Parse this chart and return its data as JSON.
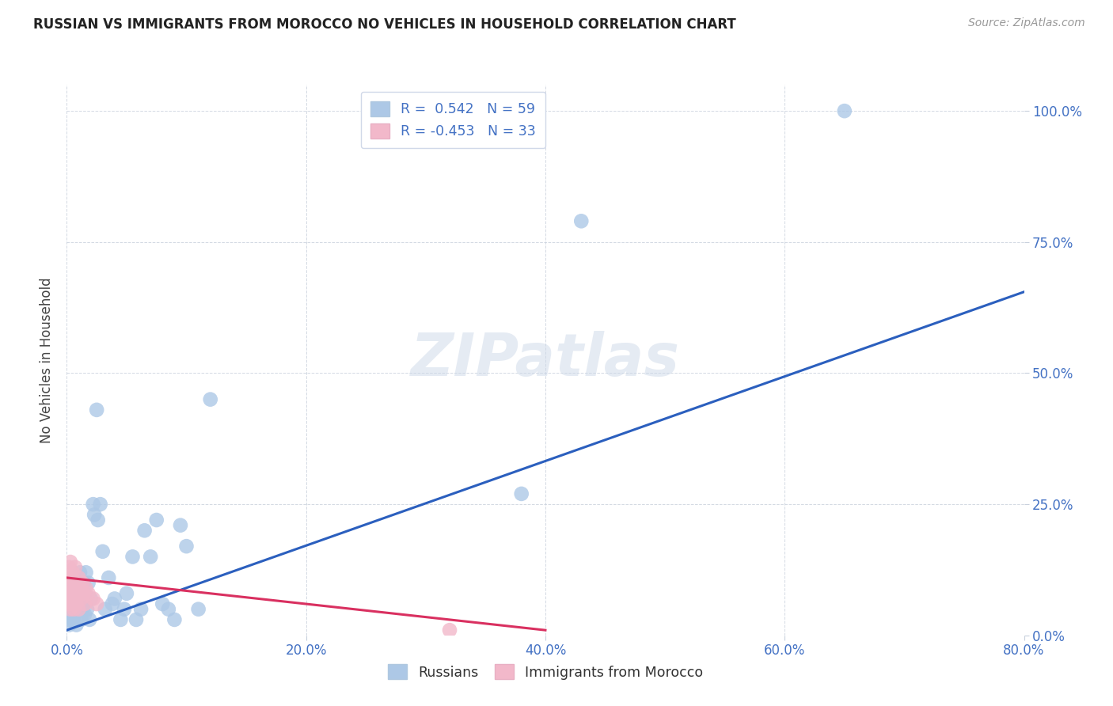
{
  "title": "RUSSIAN VS IMMIGRANTS FROM MOROCCO NO VEHICLES IN HOUSEHOLD CORRELATION CHART",
  "source": "Source: ZipAtlas.com",
  "xmin": 0.0,
  "xmax": 0.8,
  "ymin": 0.0,
  "ymax": 1.05,
  "x_ticks": [
    0.0,
    0.2,
    0.4,
    0.6,
    0.8
  ],
  "y_ticks": [
    0.0,
    0.25,
    0.5,
    0.75,
    1.0
  ],
  "x_tick_labels": [
    "0.0%",
    "20.0%",
    "40.0%",
    "60.0%",
    "80.0%"
  ],
  "y_tick_labels": [
    "0.0%",
    "25.0%",
    "50.0%",
    "75.0%",
    "100.0%"
  ],
  "legend_label1": "R =  0.542   N = 59",
  "legend_label2": "R = -0.453   N = 33",
  "legend_bottom_label1": "Russians",
  "legend_bottom_label2": "Immigrants from Morocco",
  "color_russian": "#adc8e6",
  "color_morocco": "#f2b8ca",
  "color_line_russian": "#2b5fbe",
  "color_line_morocco": "#d93060",
  "watermark": "ZIPatlas",
  "russians_x": [
    0.001,
    0.002,
    0.002,
    0.003,
    0.003,
    0.004,
    0.005,
    0.005,
    0.006,
    0.006,
    0.007,
    0.007,
    0.008,
    0.008,
    0.009,
    0.01,
    0.01,
    0.011,
    0.012,
    0.012,
    0.013,
    0.014,
    0.014,
    0.015,
    0.015,
    0.016,
    0.017,
    0.018,
    0.019,
    0.02,
    0.022,
    0.023,
    0.025,
    0.026,
    0.028,
    0.03,
    0.032,
    0.035,
    0.038,
    0.04,
    0.045,
    0.048,
    0.05,
    0.055,
    0.058,
    0.062,
    0.065,
    0.07,
    0.075,
    0.08,
    0.085,
    0.09,
    0.095,
    0.1,
    0.11,
    0.12,
    0.38,
    0.43,
    0.65
  ],
  "russians_y": [
    0.03,
    0.02,
    0.05,
    0.04,
    0.07,
    0.08,
    0.03,
    0.06,
    0.05,
    0.09,
    0.04,
    0.1,
    0.02,
    0.07,
    0.05,
    0.06,
    0.09,
    0.12,
    0.03,
    0.08,
    0.05,
    0.1,
    0.06,
    0.04,
    0.08,
    0.12,
    0.05,
    0.1,
    0.03,
    0.07,
    0.25,
    0.23,
    0.43,
    0.22,
    0.25,
    0.16,
    0.05,
    0.11,
    0.06,
    0.07,
    0.03,
    0.05,
    0.08,
    0.15,
    0.03,
    0.05,
    0.2,
    0.15,
    0.22,
    0.06,
    0.05,
    0.03,
    0.21,
    0.17,
    0.05,
    0.45,
    0.27,
    0.79,
    1.0
  ],
  "morocco_x": [
    0.001,
    0.001,
    0.002,
    0.002,
    0.002,
    0.003,
    0.003,
    0.003,
    0.004,
    0.004,
    0.004,
    0.005,
    0.005,
    0.006,
    0.006,
    0.007,
    0.007,
    0.007,
    0.008,
    0.008,
    0.009,
    0.01,
    0.01,
    0.011,
    0.012,
    0.013,
    0.014,
    0.015,
    0.016,
    0.018,
    0.022,
    0.025,
    0.32
  ],
  "morocco_y": [
    0.08,
    0.11,
    0.06,
    0.09,
    0.13,
    0.05,
    0.1,
    0.14,
    0.07,
    0.11,
    0.08,
    0.06,
    0.12,
    0.09,
    0.05,
    0.1,
    0.07,
    0.13,
    0.06,
    0.09,
    0.08,
    0.11,
    0.05,
    0.09,
    0.07,
    0.1,
    0.08,
    0.06,
    0.09,
    0.08,
    0.07,
    0.06,
    0.01
  ],
  "rus_line_x": [
    0.0,
    0.8
  ],
  "rus_line_y": [
    0.01,
    0.655
  ],
  "mor_line_x": [
    0.0,
    0.4
  ],
  "mor_line_y": [
    0.11,
    0.01
  ]
}
